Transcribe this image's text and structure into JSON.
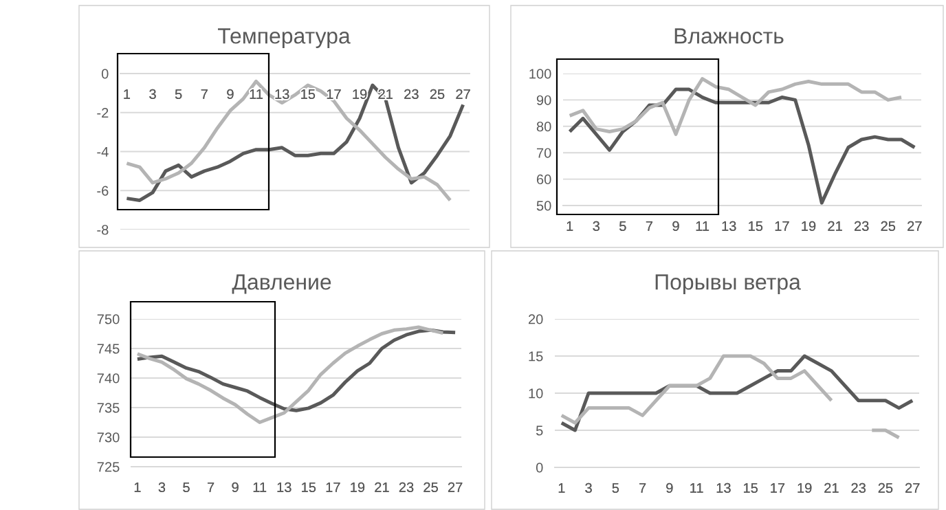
{
  "chart_data": [
    {
      "type": "line",
      "title": "Температура",
      "categories": [
        "1",
        null,
        "3",
        null,
        "5",
        null,
        "7",
        null,
        "9",
        null,
        "11",
        null,
        "13",
        null,
        "15",
        null,
        "17",
        null,
        "19",
        null,
        "21",
        null,
        "23",
        null,
        "25",
        null,
        "27"
      ],
      "series": [
        {
          "color": "#595959",
          "values": [
            -6.4,
            -6.5,
            -6.1,
            -5.0,
            -4.7,
            -5.3,
            -5.0,
            -4.8,
            -4.5,
            -4.1,
            -3.9,
            -3.9,
            -3.8,
            -4.2,
            -4.2,
            -4.1,
            -4.1,
            -3.5,
            -2.3,
            -0.6,
            -1.3,
            -3.8,
            -5.6,
            -5.1,
            -4.2,
            -3.2,
            -1.6
          ]
        },
        {
          "color": "#b4b4b4",
          "values": [
            -4.6,
            -4.8,
            -5.6,
            -5.4,
            -5.1,
            -4.6,
            -3.8,
            -2.8,
            -1.9,
            -1.3,
            -0.4,
            -1.1,
            -1.5,
            -1.1,
            -0.6,
            -0.9,
            -1.4,
            -2.3,
            -2.9,
            -3.6,
            -4.3,
            -4.9,
            -5.4,
            -5.3,
            -5.7,
            -6.5,
            null
          ]
        }
      ],
      "ylim": [
        -8,
        0
      ],
      "yticks": [
        -8,
        -6,
        -4,
        -2,
        0
      ],
      "grid": "y"
    },
    {
      "type": "line",
      "title": "Влажность",
      "categories": [
        "1",
        null,
        "3",
        null,
        "5",
        null,
        "7",
        null,
        "9",
        null,
        "11",
        null,
        "13",
        null,
        "15",
        null,
        "17",
        null,
        "19",
        null,
        "21",
        null,
        "23",
        null,
        "25",
        null,
        "27"
      ],
      "series": [
        {
          "color": "#595959",
          "values": [
            78,
            83,
            77,
            71,
            78,
            82,
            88,
            88,
            94,
            94,
            91,
            89,
            89,
            89,
            89,
            89,
            91,
            90,
            73,
            51,
            62,
            72,
            75,
            76,
            75,
            75,
            72
          ]
        },
        {
          "color": "#b4b4b4",
          "values": [
            84,
            86,
            79,
            78,
            79,
            82,
            87,
            89,
            77,
            90,
            98,
            95,
            94,
            91,
            88,
            93,
            94,
            96,
            97,
            96,
            96,
            96,
            93,
            93,
            90,
            91,
            null
          ]
        }
      ],
      "ylim": [
        50,
        100
      ],
      "yticks": [
        50,
        60,
        70,
        80,
        90,
        100
      ],
      "grid": "y"
    },
    {
      "type": "line",
      "title": "Давление",
      "categories": [
        "1",
        null,
        "3",
        null,
        "5",
        null,
        "7",
        null,
        "9",
        null,
        "11",
        null,
        "13",
        null,
        "15",
        null,
        "17",
        null,
        "19",
        null,
        "21",
        null,
        "23",
        null,
        "25",
        null,
        "27"
      ],
      "series": [
        {
          "color": "#595959",
          "values": [
            743.2,
            743.5,
            743.7,
            742.7,
            741.7,
            741.1,
            740.1,
            739.0,
            738.4,
            737.8,
            736.7,
            735.7,
            734.8,
            734.5,
            734.9,
            735.8,
            737.1,
            739.3,
            741.2,
            742.5,
            745.0,
            746.4,
            747.3,
            747.9,
            748.1,
            747.8,
            747.7
          ]
        },
        {
          "color": "#b4b4b4",
          "values": [
            744.1,
            743.3,
            742.7,
            741.4,
            739.9,
            739.0,
            737.9,
            736.6,
            735.5,
            733.9,
            732.5,
            733.3,
            734.1,
            736.0,
            737.9,
            740.6,
            742.5,
            744.2,
            745.4,
            746.5,
            747.5,
            748.1,
            748.3,
            748.6,
            748.1,
            747.6,
            null
          ]
        }
      ],
      "ylim": [
        725,
        750
      ],
      "yticks": [
        725,
        730,
        735,
        740,
        745,
        750
      ],
      "grid": "y"
    },
    {
      "type": "line",
      "title": "Порывы ветра",
      "categories": [
        "1",
        null,
        "3",
        null,
        "5",
        null,
        "7",
        null,
        "9",
        null,
        "11",
        null,
        "13",
        null,
        "15",
        null,
        "17",
        null,
        "19",
        null,
        "21",
        null,
        "23",
        null,
        "25",
        null,
        "27"
      ],
      "series": [
        {
          "color": "#595959",
          "values": [
            6,
            5,
            10,
            10,
            10,
            10,
            10,
            10,
            11,
            11,
            11,
            10,
            10,
            10,
            11,
            12,
            13,
            13,
            15,
            14,
            13,
            11,
            9,
            9,
            9,
            8,
            9
          ]
        },
        {
          "color": "#b4b4b4",
          "values": [
            7,
            6,
            8,
            8,
            8,
            8,
            7,
            9,
            11,
            11,
            11,
            12,
            15,
            15,
            15,
            14,
            12,
            12,
            13,
            11,
            9,
            null,
            null,
            5,
            5,
            4,
            null
          ]
        }
      ],
      "ylim": [
        0,
        20
      ],
      "yticks": [
        0,
        5,
        10,
        15,
        20
      ],
      "grid": "y"
    }
  ]
}
